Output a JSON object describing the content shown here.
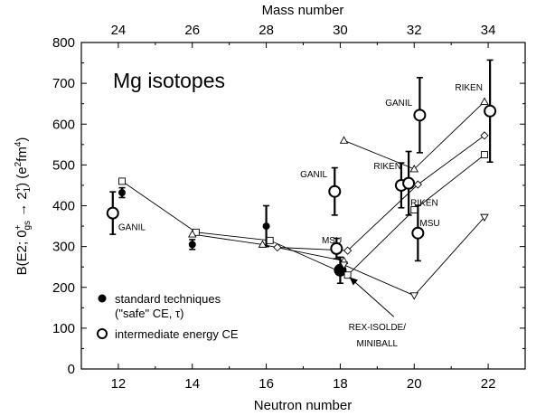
{
  "chart_data": {
    "type": "scatter",
    "title": "Mg isotopes",
    "xlabel": "Neutron number",
    "x2label": "Mass number",
    "ylabel": "B(E2; 0⁺₍ᵍₛ₎ → 2₁⁺) (e²fm⁴)",
    "ylabel_parts": {
      "main": "B(E2; 0",
      "sup1": "+",
      "sub1": "gs",
      "arrow": " → 2",
      "sup2": "+",
      "sub2": "1",
      "units": ") (e",
      "units_sup1": "2",
      "units_mid": "fm",
      "units_sup2": "4",
      "units_end": ")"
    },
    "xlim": [
      11,
      23
    ],
    "ylim": [
      0,
      800
    ],
    "x_ticks": [
      "12",
      "14",
      "16",
      "18",
      "20",
      "22"
    ],
    "x_tick_values": [
      12,
      14,
      16,
      18,
      20,
      22
    ],
    "x2_ticks": [
      "24",
      "26",
      "28",
      "30",
      "32",
      "34"
    ],
    "y_ticks": [
      "0",
      "100",
      "200",
      "300",
      "400",
      "500",
      "600",
      "700",
      "800"
    ],
    "y_tick_values": [
      0,
      100,
      200,
      300,
      400,
      500,
      600,
      700,
      800
    ],
    "grid": false,
    "legend": {
      "placement": "bottom-left",
      "entries": [
        {
          "label": "standard techniques",
          "label2": "(\"safe\" CE, τ)",
          "marker": "filled-circle"
        },
        {
          "label": "intermediate energy CE",
          "label2": "",
          "marker": "open-circle"
        }
      ]
    },
    "series": [
      {
        "marker": "filled-circle",
        "points": [
          {
            "x": 12.1,
            "y": 432,
            "err": 12
          },
          {
            "x": 14.0,
            "y": 305,
            "err": 12
          },
          {
            "x": 16.0,
            "y": 350,
            "err": 50
          },
          {
            "x": 18.0,
            "y": 242,
            "err": 32
          }
        ]
      },
      {
        "marker": "open-circle",
        "points": [
          {
            "x": 11.85,
            "y": 382,
            "err": 52
          },
          {
            "x": 17.85,
            "y": 435,
            "err": 58
          },
          {
            "x": 17.9,
            "y": 295,
            "err": 25
          },
          {
            "x": 19.65,
            "y": 450,
            "err": 55
          },
          {
            "x": 19.85,
            "y": 455,
            "err": 78
          },
          {
            "x": 20.1,
            "y": 333,
            "err": 68
          },
          {
            "x": 20.15,
            "y": 622,
            "err": 92
          },
          {
            "x": 22.05,
            "y": 632,
            "err": 125
          }
        ]
      },
      {
        "marker": "square",
        "points": [
          {
            "x": 12.1,
            "y": 460
          },
          {
            "x": 14.1,
            "y": 335
          },
          {
            "x": 16.1,
            "y": 315
          },
          {
            "x": 18.2,
            "y": 230
          },
          {
            "x": 20.0,
            "y": 390
          },
          {
            "x": 21.9,
            "y": 525
          }
        ]
      },
      {
        "marker": "triangle-up",
        "points": [
          {
            "x": 18.1,
            "y": 560
          },
          {
            "x": 20.0,
            "y": 490
          },
          {
            "x": 21.9,
            "y": 655
          }
        ]
      },
      {
        "marker": "triangle-up",
        "points": [
          {
            "x": 14.0,
            "y": 330
          },
          {
            "x": 15.9,
            "y": 305
          },
          {
            "x": 18.1,
            "y": 265
          }
        ]
      },
      {
        "marker": "diamond",
        "points": [
          {
            "x": 16.3,
            "y": 298
          },
          {
            "x": 18.2,
            "y": 290
          },
          {
            "x": 20.1,
            "y": 452
          },
          {
            "x": 21.9,
            "y": 572
          }
        ]
      },
      {
        "marker": "triangle-down",
        "points": [
          {
            "x": 18.1,
            "y": 255
          },
          {
            "x": 20.0,
            "y": 180
          },
          {
            "x": 21.9,
            "y": 372
          }
        ]
      }
    ],
    "annotations": [
      {
        "text": "GANIL",
        "x": 12.0,
        "y": 340,
        "anchor": "start"
      },
      {
        "text": "GANIL",
        "x": 17.65,
        "y": 470,
        "anchor": "end"
      },
      {
        "text": "MSU",
        "x": 17.5,
        "y": 308,
        "anchor": "start"
      },
      {
        "text": "RIKEN",
        "x": 19.65,
        "y": 490,
        "anchor": "end"
      },
      {
        "text": "RIKEN",
        "x": 19.9,
        "y": 400,
        "anchor": "start"
      },
      {
        "text": "GANIL",
        "x": 19.95,
        "y": 645,
        "anchor": "end"
      },
      {
        "text": "MSU",
        "x": 20.15,
        "y": 350,
        "anchor": "start"
      },
      {
        "text": "RIKEN",
        "x": 21.85,
        "y": 682,
        "anchor": "end"
      },
      {
        "text": "REX-ISOLDE/",
        "x": 19.0,
        "y": 95,
        "anchor": "middle",
        "size": 12
      },
      {
        "text": "MINIBALL",
        "x": 19.0,
        "y": 55,
        "anchor": "middle",
        "size": 12
      }
    ],
    "arrow": {
      "from": [
        19.45,
        128
      ],
      "to": [
        18.25,
        225
      ]
    }
  }
}
